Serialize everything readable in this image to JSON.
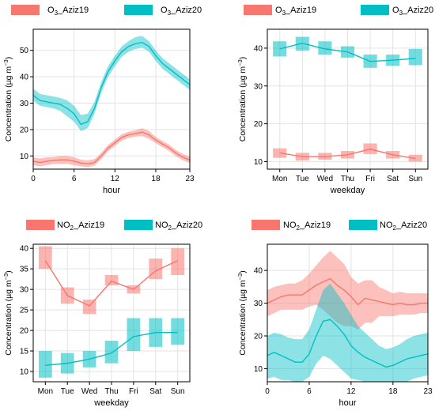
{
  "colors": {
    "aziz19": "#f8766d",
    "aziz20": "#00bfc4"
  },
  "chart_data": [
    {
      "type": "line",
      "xlabel": "hour",
      "ylabel": "Concentration (µg m⁻³)",
      "xlim": [
        0,
        23
      ],
      "ylim": [
        5,
        58
      ],
      "xticks": [
        "0",
        "6",
        "12",
        "18",
        "23"
      ],
      "xtick_values": [
        0,
        6,
        12,
        18,
        23
      ],
      "yticks": [
        10,
        20,
        30,
        40,
        50
      ],
      "legend": {
        "placement": "top",
        "entries": [
          {
            "base": "O",
            "sub": "3",
            "suffix": "_Aziz19",
            "color": "#f8766d"
          },
          {
            "base": "O",
            "sub": "3",
            "suffix": "_Aziz20",
            "color": "#00bfc4"
          }
        ]
      },
      "series": [
        {
          "name": "O3_Aziz19",
          "color": "#f8766d",
          "x": [
            0,
            1,
            2,
            3,
            4,
            5,
            6,
            7,
            8,
            9,
            10,
            11,
            12,
            13,
            14,
            15,
            16,
            17,
            18,
            19,
            20,
            21,
            22,
            23
          ],
          "values": [
            8,
            7.5,
            8,
            8.3,
            8.5,
            8.5,
            8,
            7.3,
            7,
            7.5,
            10,
            13,
            15,
            17,
            18,
            18.5,
            19,
            18,
            16,
            14.5,
            13,
            11,
            9.5,
            8.5
          ],
          "lower": [
            6.5,
            6,
            6.5,
            7,
            7,
            7,
            6.5,
            6,
            5.8,
            6.3,
            8.8,
            11.8,
            13.8,
            15.8,
            16.8,
            17.3,
            17.5,
            16.5,
            14.8,
            13.3,
            11.8,
            9.8,
            8.3,
            7.3
          ],
          "upper": [
            9.5,
            9,
            9.5,
            9.6,
            10,
            10,
            9.5,
            8.6,
            8.3,
            8.8,
            11.2,
            14.2,
            16.2,
            18.2,
            19.2,
            19.7,
            20.5,
            19.5,
            17.2,
            15.7,
            14.2,
            12.2,
            10.7,
            9.7
          ]
        },
        {
          "name": "O3_Aziz20",
          "color": "#00bfc4",
          "x": [
            0,
            1,
            2,
            3,
            4,
            5,
            6,
            7,
            8,
            9,
            10,
            11,
            12,
            13,
            14,
            15,
            16,
            17,
            18,
            19,
            20,
            21,
            22,
            23
          ],
          "values": [
            33,
            31,
            30.5,
            30,
            29.5,
            28,
            26,
            22,
            23,
            28,
            36,
            42,
            46,
            49.5,
            51.5,
            52.5,
            53,
            51.5,
            48,
            45,
            43,
            41,
            39,
            37
          ],
          "lower": [
            31,
            29,
            28.5,
            28,
            27,
            25,
            23,
            19.5,
            20.5,
            26,
            34,
            40,
            44,
            47.5,
            49.5,
            50.5,
            51,
            49.5,
            46,
            43,
            41,
            39,
            37,
            35
          ],
          "upper": [
            35.5,
            33.5,
            33,
            32.5,
            32,
            31,
            29,
            25.5,
            26,
            30.5,
            38,
            44,
            48,
            51.5,
            53.5,
            55,
            55.5,
            53.5,
            50,
            47,
            45,
            43,
            41,
            39
          ]
        }
      ]
    },
    {
      "type": "line",
      "xlabel": "weekday",
      "ylabel": "Concentration (µg m⁻³)",
      "categories": [
        "Mon",
        "Tue",
        "Wed",
        "Thu",
        "Fri",
        "Sat",
        "Sun"
      ],
      "ylim": [
        8,
        45
      ],
      "yticks": [
        10,
        20,
        30,
        40
      ],
      "legend": {
        "placement": "top",
        "entries": [
          {
            "base": "O",
            "sub": "3",
            "suffix": "_Aziz19",
            "color": "#f8766d"
          },
          {
            "base": "O",
            "sub": "3",
            "suffix": "_Aziz20",
            "color": "#00bfc4"
          }
        ]
      },
      "series": [
        {
          "name": "O3_Aziz19",
          "color": "#f8766d",
          "values": [
            12.3,
            11.3,
            11.3,
            11.8,
            13.3,
            11.8,
            10.8
          ],
          "lower": [
            11,
            10.3,
            10.5,
            10.8,
            12,
            10.8,
            10
          ],
          "upper": [
            13.5,
            12.3,
            12.3,
            12.8,
            14.8,
            12.8,
            11.8
          ]
        },
        {
          "name": "O3_Aziz20",
          "color": "#00bfc4",
          "values": [
            39.8,
            41.3,
            39.8,
            39,
            36.5,
            36.8,
            37.3
          ],
          "lower": [
            37.8,
            39.3,
            38.3,
            37.5,
            34.8,
            35.3,
            35.5
          ],
          "upper": [
            41.8,
            43,
            41.8,
            40.5,
            38.3,
            38.3,
            39.8
          ]
        }
      ]
    },
    {
      "type": "line",
      "xlabel": "weekday",
      "ylabel": "Concentration (µg m⁻³)",
      "categories": [
        "Mon",
        "Tue",
        "Wed",
        "Thu",
        "Fri",
        "Sat",
        "Sun"
      ],
      "ylim": [
        7.5,
        41
      ],
      "yticks": [
        10,
        15,
        20,
        25,
        30,
        35,
        40
      ],
      "legend": {
        "placement": "top",
        "entries": [
          {
            "base": "NO",
            "sub": "2",
            "suffix": "_Aziz19",
            "color": "#f8766d"
          },
          {
            "base": "NO",
            "sub": "2",
            "suffix": "_Aziz20",
            "color": "#00bfc4"
          }
        ]
      },
      "series": [
        {
          "name": "NO2_Aziz19",
          "color": "#f8766d",
          "values": [
            37,
            28.5,
            26,
            32,
            30,
            34.5,
            37
          ],
          "lower": [
            35,
            26.5,
            24,
            31,
            29,
            32.5,
            33.5
          ],
          "upper": [
            40.5,
            30.5,
            27.5,
            33.5,
            31,
            37.5,
            40
          ]
        },
        {
          "name": "NO2_Aziz20",
          "color": "#00bfc4",
          "values": [
            11.5,
            12,
            13,
            14.5,
            18.5,
            19.5,
            19.5
          ],
          "lower": [
            8.5,
            9.5,
            11,
            12,
            15,
            16,
            16.5
          ],
          "upper": [
            15,
            14.5,
            15,
            17.5,
            23,
            23,
            23
          ]
        }
      ]
    },
    {
      "type": "line",
      "xlabel": "hour",
      "ylabel": "Concentration (µg m⁻³)",
      "xlim": [
        0,
        23
      ],
      "ylim": [
        6,
        48
      ],
      "xticks": [
        "0",
        "6",
        "12",
        "18",
        "23"
      ],
      "xtick_values": [
        0,
        6,
        12,
        18,
        23
      ],
      "yticks": [
        10,
        20,
        30,
        40
      ],
      "legend": {
        "placement": "top",
        "entries": [
          {
            "base": "NO",
            "sub": "2",
            "suffix": "_Aziz19",
            "color": "#f8766d"
          },
          {
            "base": "NO",
            "sub": "2",
            "suffix": "_Aziz20",
            "color": "#00bfc4"
          }
        ]
      },
      "series": [
        {
          "name": "NO2_Aziz19",
          "color": "#f8766d",
          "x": [
            0,
            1,
            2,
            3,
            4,
            5,
            6,
            7,
            8,
            9,
            10,
            11,
            12,
            13,
            14,
            15,
            16,
            17,
            18,
            19,
            20,
            21,
            22,
            23
          ],
          "values": [
            30,
            31,
            32,
            32.5,
            32.5,
            32.5,
            34,
            35.5,
            36.5,
            37.5,
            35.5,
            34,
            32,
            29.5,
            31.5,
            31,
            30.5,
            30,
            29.5,
            30,
            29.5,
            29.5,
            30,
            30
          ],
          "lower": [
            26,
            27,
            28,
            28,
            28,
            28,
            29,
            29.5,
            28,
            26,
            24,
            23,
            23,
            22,
            24,
            24,
            26,
            26,
            26,
            26.5,
            26.5,
            26.5,
            27,
            27
          ],
          "upper": [
            34,
            35,
            35.5,
            36,
            36,
            37,
            39,
            41.5,
            44,
            46,
            44,
            42,
            38,
            36,
            37,
            37,
            35,
            34,
            33,
            33.5,
            33,
            33,
            33,
            33
          ]
        },
        {
          "name": "NO2_Aziz20",
          "color": "#00bfc4",
          "x": [
            0,
            1,
            2,
            3,
            4,
            5,
            6,
            7,
            8,
            9,
            10,
            11,
            12,
            13,
            14,
            15,
            16,
            17,
            18,
            19,
            20,
            21,
            22,
            23
          ],
          "values": [
            14,
            15,
            14,
            13,
            12,
            12,
            14.5,
            20,
            24.5,
            25,
            23,
            20.5,
            17,
            15,
            13.5,
            12.5,
            11.5,
            10.5,
            11,
            12,
            13,
            13.5,
            14,
            14.5
          ],
          "lower": [
            7,
            7.5,
            6.5,
            6.5,
            6,
            6,
            7.5,
            11.5,
            14,
            13,
            11,
            9,
            7,
            6.5,
            6,
            6,
            6,
            6,
            6,
            6,
            6,
            7,
            7.5,
            8
          ],
          "upper": [
            20,
            21,
            20.5,
            19.5,
            19,
            19,
            22,
            28,
            34,
            36,
            33,
            30,
            26.5,
            23,
            21,
            19,
            17,
            16,
            16.5,
            17.5,
            19,
            20,
            20.5,
            21
          ]
        }
      ]
    }
  ]
}
